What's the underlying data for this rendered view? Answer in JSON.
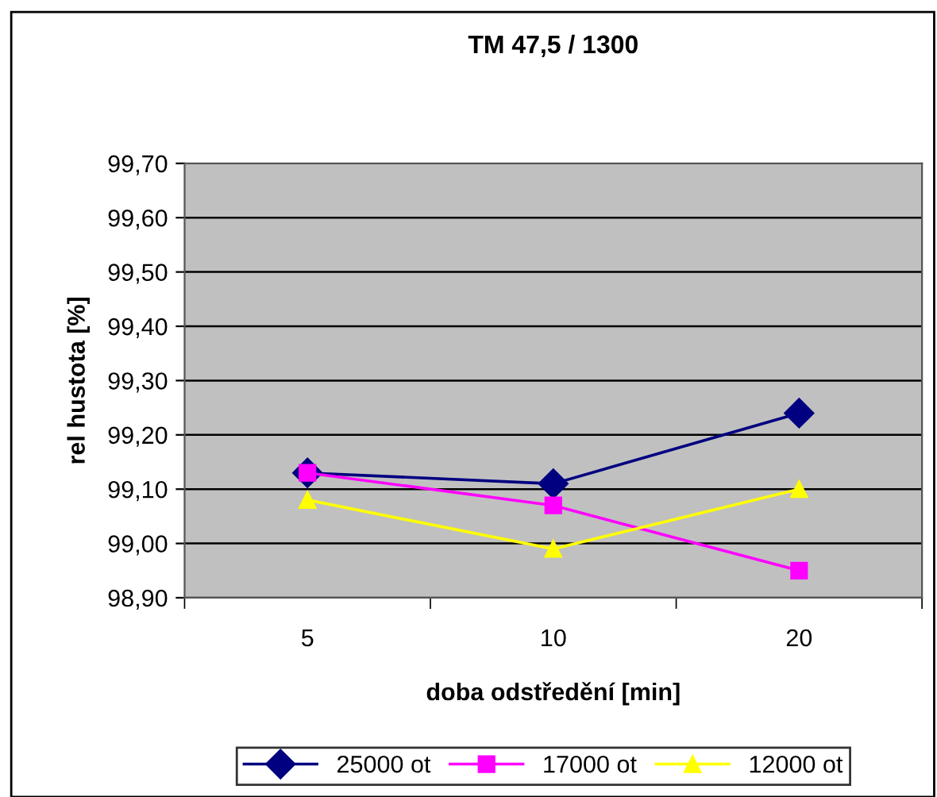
{
  "chart_data": {
    "type": "line",
    "title": "TM 47,5 / 1300",
    "xlabel": "doba odstředění [min]",
    "ylabel": "rel hustota [%]",
    "categories": [
      "5",
      "10",
      "20"
    ],
    "series": [
      {
        "name": "25000 ot",
        "color": "#000080",
        "marker": "diamond",
        "values": [
          99.13,
          99.11,
          99.24
        ]
      },
      {
        "name": "17000 ot",
        "color": "#ff00ff",
        "marker": "square",
        "values": [
          99.13,
          99.07,
          98.95
        ]
      },
      {
        "name": "12000 ot",
        "color": "#ffff00",
        "marker": "triangle",
        "values": [
          99.08,
          98.99,
          99.1
        ]
      }
    ],
    "ylim": [
      98.9,
      99.7
    ],
    "yticks": [
      {
        "value": 98.9,
        "label": "98,90"
      },
      {
        "value": 99.0,
        "label": "99,00"
      },
      {
        "value": 99.1,
        "label": "99,10"
      },
      {
        "value": 99.2,
        "label": "99,20"
      },
      {
        "value": 99.3,
        "label": "99,30"
      },
      {
        "value": 99.4,
        "label": "99,40"
      },
      {
        "value": 99.5,
        "label": "99,50"
      },
      {
        "value": 99.6,
        "label": "99,60"
      },
      {
        "value": 99.7,
        "label": "99,70"
      }
    ],
    "grid": "y",
    "legend": "bottom",
    "line_style": "solid"
  }
}
